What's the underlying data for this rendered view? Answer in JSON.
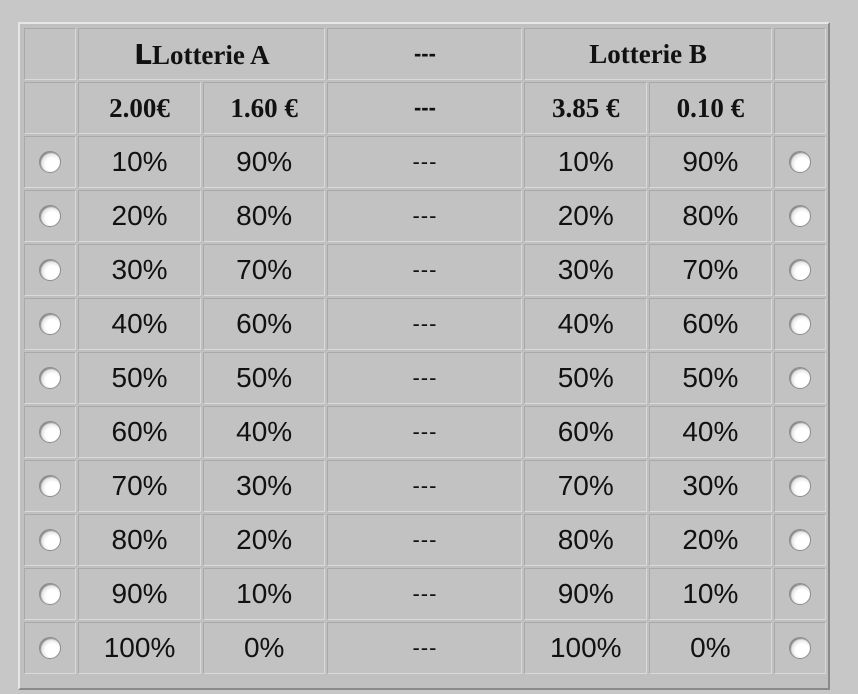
{
  "header": {
    "corner_mark": "L",
    "lottery_a": "Lotterie A",
    "lottery_b": "Lotterie B",
    "separator": "---",
    "a_high_payoff": "2.00€",
    "a_low_payoff": "1.60 €",
    "b_high_payoff": "3.85 €",
    "b_low_payoff": "0.10 €"
  },
  "separator": "---",
  "rows": [
    {
      "a_p1": "10%",
      "a_p2": "90%",
      "b_p1": "10%",
      "b_p2": "90%"
    },
    {
      "a_p1": "20%",
      "a_p2": "80%",
      "b_p1": "20%",
      "b_p2": "80%"
    },
    {
      "a_p1": "30%",
      "a_p2": "70%",
      "b_p1": "30%",
      "b_p2": "70%"
    },
    {
      "a_p1": "40%",
      "a_p2": "60%",
      "b_p1": "40%",
      "b_p2": "60%"
    },
    {
      "a_p1": "50%",
      "a_p2": "50%",
      "b_p1": "50%",
      "b_p2": "50%"
    },
    {
      "a_p1": "60%",
      "a_p2": "40%",
      "b_p1": "60%",
      "b_p2": "40%"
    },
    {
      "a_p1": "70%",
      "a_p2": "30%",
      "b_p1": "70%",
      "b_p2": "30%"
    },
    {
      "a_p1": "80%",
      "a_p2": "20%",
      "b_p1": "80%",
      "b_p2": "20%"
    },
    {
      "a_p1": "90%",
      "a_p2": "10%",
      "b_p1": "90%",
      "b_p2": "10%"
    },
    {
      "a_p1": "100%",
      "a_p2": "0%",
      "b_p1": "100%",
      "b_p2": "0%"
    }
  ],
  "radio_selected": {
    "lottery_a": null,
    "lottery_b": null
  }
}
